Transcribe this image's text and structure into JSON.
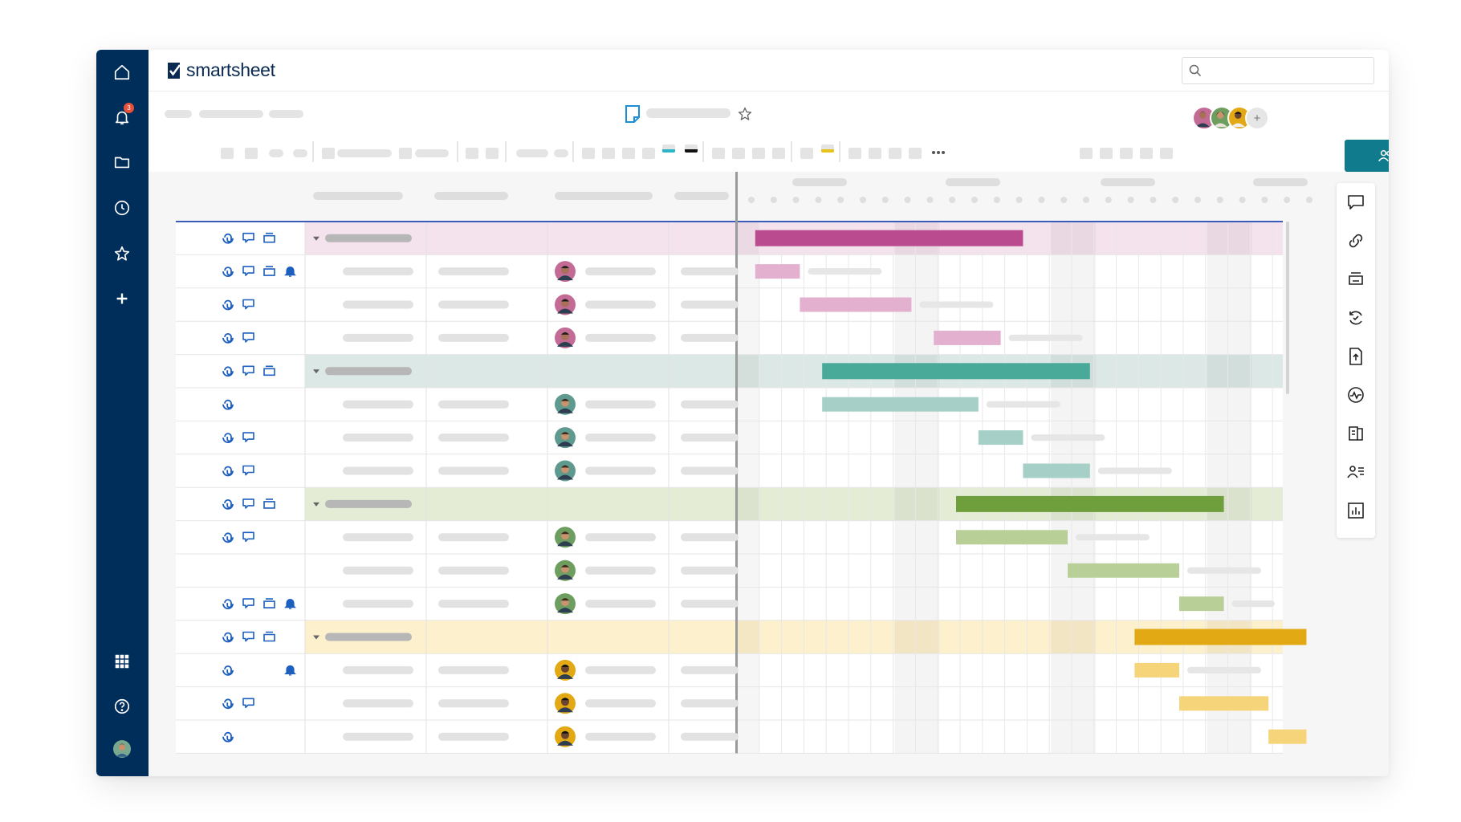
{
  "app": {
    "logo_text": "smartsheet",
    "brand_color": "#002e5b",
    "accent_color": "#0f7b8c"
  },
  "left_rail": {
    "items": [
      {
        "icon": "home-icon"
      },
      {
        "icon": "bell-icon",
        "badge": "3"
      },
      {
        "icon": "folder-icon"
      },
      {
        "icon": "clock-icon"
      },
      {
        "icon": "star-icon"
      },
      {
        "icon": "plus-icon"
      },
      {
        "icon": "apps-grid-icon"
      },
      {
        "icon": "help-icon"
      },
      {
        "icon": "user-avatar"
      }
    ]
  },
  "header": {
    "search_placeholder": ""
  },
  "collaborators": {
    "more_label": "+"
  },
  "right_panel": {
    "icons": [
      "comment-icon",
      "link-icon",
      "printer-icon",
      "sync-icon",
      "upload-icon",
      "activity-icon",
      "publish-icon",
      "contacts-icon",
      "chart-icon"
    ]
  },
  "gantt": {
    "colors": {
      "pink": {
        "row": "#f4e2ec",
        "parent_bar": "#b94b8e",
        "child_bar": "#e3b0cf"
      },
      "teal": {
        "row": "#dce8e5",
        "parent_bar": "#4aaa99",
        "child_bar": "#a6cfc7"
      },
      "green": {
        "row": "#e4ecd6",
        "parent_bar": "#6f9f3d",
        "child_bar": "#b8cf98"
      },
      "yellow": {
        "row": "#fdf0cc",
        "parent_bar": "#e3a915",
        "child_bar": "#f5d47a"
      }
    },
    "rows": [
      {
        "type": "parent",
        "group": "pink",
        "icons": [
          "attach",
          "comment",
          "proof"
        ],
        "start": 1,
        "end": 13
      },
      {
        "type": "child",
        "group": "pink",
        "icons": [
          "attach",
          "comment",
          "proof",
          "reminder"
        ],
        "avatar": 1,
        "start": 1,
        "end": 3
      },
      {
        "type": "child",
        "group": "pink",
        "icons": [
          "attach",
          "comment"
        ],
        "avatar": 1,
        "start": 3,
        "end": 8
      },
      {
        "type": "child",
        "group": "pink",
        "icons": [
          "attach",
          "comment"
        ],
        "avatar": 1,
        "start": 9,
        "end": 12
      },
      {
        "type": "parent",
        "group": "teal",
        "icons": [
          "attach",
          "comment",
          "proof"
        ],
        "start": 4,
        "end": 16
      },
      {
        "type": "child",
        "group": "teal",
        "icons": [
          "attach"
        ],
        "avatar": 2,
        "start": 4,
        "end": 11
      },
      {
        "type": "child",
        "group": "teal",
        "icons": [
          "attach",
          "comment"
        ],
        "avatar": 2,
        "start": 11,
        "end": 13
      },
      {
        "type": "child",
        "group": "teal",
        "icons": [
          "attach",
          "comment"
        ],
        "avatar": 2,
        "start": 13,
        "end": 16
      },
      {
        "type": "parent",
        "group": "green",
        "icons": [
          "attach",
          "comment",
          "proof"
        ],
        "start": 10,
        "end": 22
      },
      {
        "type": "child",
        "group": "green",
        "icons": [
          "attach",
          "comment"
        ],
        "avatar": 3,
        "start": 10,
        "end": 15
      },
      {
        "type": "child",
        "group": "green",
        "icons": [],
        "avatar": 3,
        "start": 15,
        "end": 20
      },
      {
        "type": "child",
        "group": "green",
        "icons": [
          "attach",
          "comment",
          "proof",
          "reminder"
        ],
        "avatar": 3,
        "start": 20,
        "end": 22
      },
      {
        "type": "parent",
        "group": "yellow",
        "icons": [
          "attach",
          "comment",
          "proof"
        ],
        "start": 18,
        "end": 25.7
      },
      {
        "type": "child",
        "group": "yellow",
        "icons": [
          "attach",
          "reminder"
        ],
        "avatar": 4,
        "start": 18,
        "end": 20
      },
      {
        "type": "child",
        "group": "yellow",
        "icons": [
          "attach",
          "comment"
        ],
        "avatar": 4,
        "start": 20,
        "end": 24
      },
      {
        "type": "child",
        "group": "yellow",
        "icons": [
          "attach"
        ],
        "avatar": 4,
        "start": 24,
        "end": 25.7
      }
    ]
  }
}
